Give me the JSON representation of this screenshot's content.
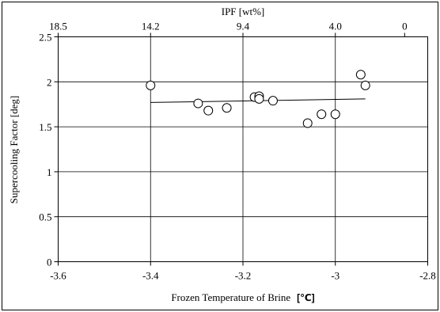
{
  "chart_data": {
    "type": "scatter",
    "xlabel": "Frozen Temperature of Brine",
    "xlabel_unit": "[℃]",
    "ylabel": "Supercooling Factor  [deg]",
    "top_axis_label": "IPF [wt%]",
    "xlim": [
      -3.6,
      -2.8
    ],
    "ylim": [
      0,
      2.5
    ],
    "x_ticks": [
      "-3.6",
      "-3.4",
      "-3.2",
      "-3",
      "-2.8"
    ],
    "y_ticks": [
      "0",
      "0.5",
      "1",
      "1.5",
      "2",
      "2.5"
    ],
    "top_ticks": [
      {
        "label": "18.5",
        "x": -3.6
      },
      {
        "label": "14.2",
        "x": -3.4
      },
      {
        "label": "9.4",
        "x": -3.2
      },
      {
        "label": "4.0",
        "x": -3.0
      },
      {
        "label": "0",
        "x": -2.85
      }
    ],
    "grid": true,
    "points": [
      {
        "x": -3.4,
        "y": 1.96
      },
      {
        "x": -3.297,
        "y": 1.76
      },
      {
        "x": -3.275,
        "y": 1.68
      },
      {
        "x": -3.235,
        "y": 1.71
      },
      {
        "x": -3.175,
        "y": 1.83
      },
      {
        "x": -3.165,
        "y": 1.84
      },
      {
        "x": -3.165,
        "y": 1.81
      },
      {
        "x": -3.135,
        "y": 1.79
      },
      {
        "x": -3.06,
        "y": 1.54
      },
      {
        "x": -3.03,
        "y": 1.64
      },
      {
        "x": -3.0,
        "y": 1.64
      },
      {
        "x": -2.945,
        "y": 2.08
      },
      {
        "x": -2.935,
        "y": 1.96
      }
    ],
    "trendline": [
      {
        "x": -3.4,
        "y": 1.77
      },
      {
        "x": -2.935,
        "y": 1.81
      }
    ]
  }
}
